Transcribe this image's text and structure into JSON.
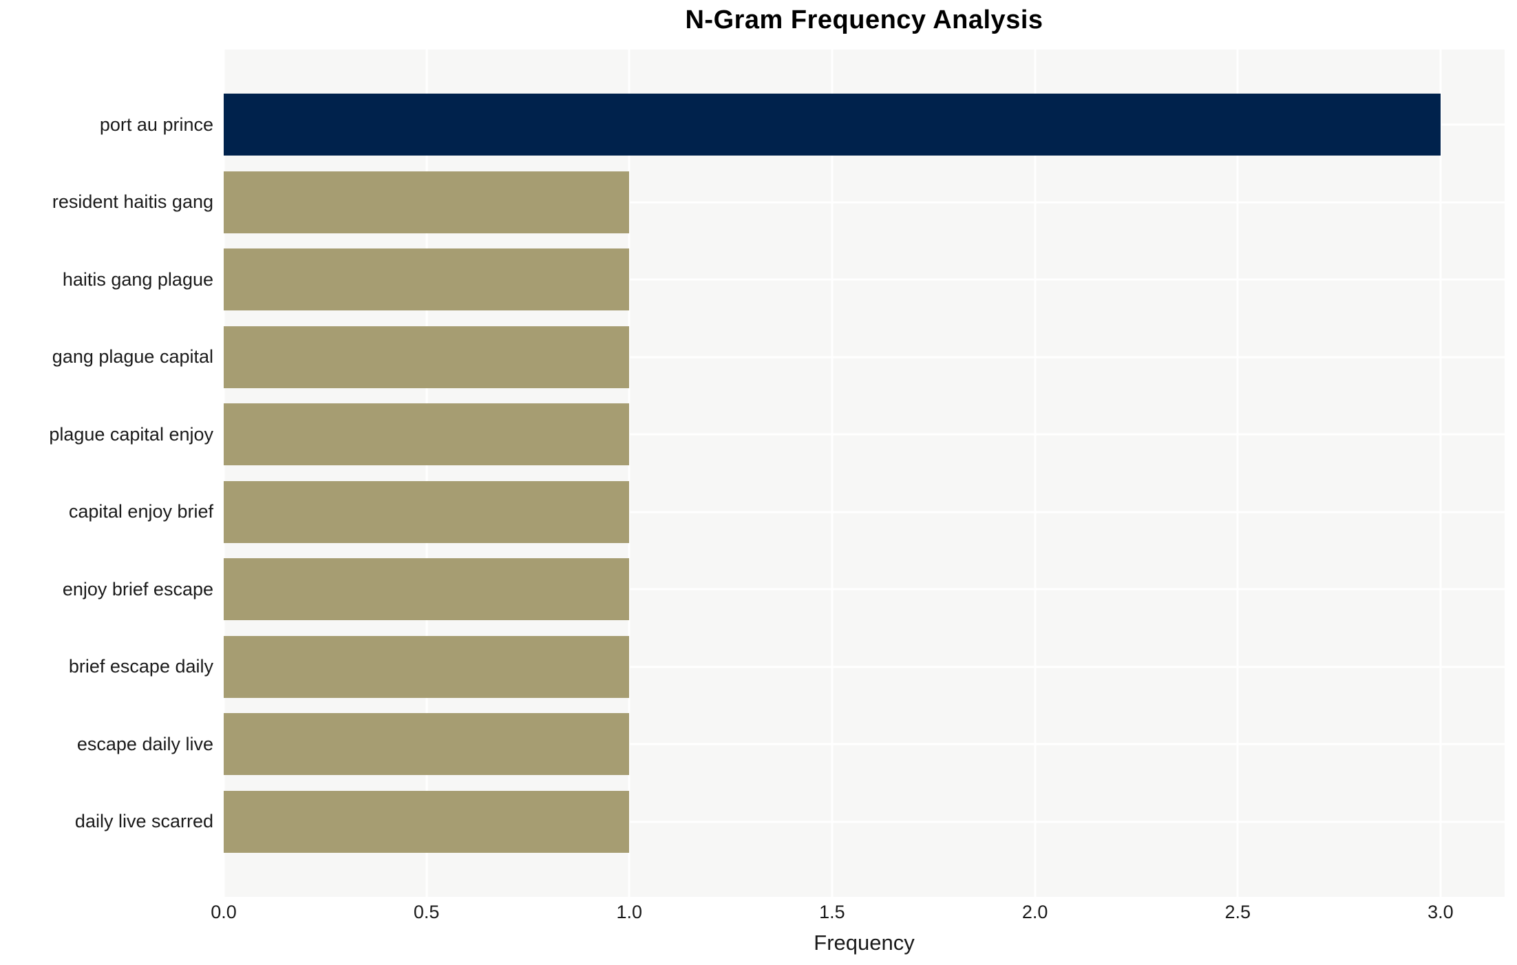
{
  "title": "N-Gram Frequency Analysis",
  "chart_data": {
    "type": "bar",
    "orientation": "horizontal",
    "title": "N-Gram Frequency Analysis",
    "xlabel": "Frequency",
    "ylabel": "",
    "categories": [
      "port au prince",
      "resident haitis gang",
      "haitis gang plague",
      "gang plague capital",
      "plague capital enjoy",
      "capital enjoy brief",
      "enjoy brief escape",
      "brief escape daily",
      "escape daily live",
      "daily live scarred"
    ],
    "values": [
      3,
      1,
      1,
      1,
      1,
      1,
      1,
      1,
      1,
      1
    ],
    "bar_colors": [
      "#00224c",
      "#a69d72",
      "#a69d72",
      "#a69d72",
      "#a69d72",
      "#a69d72",
      "#a69d72",
      "#a69d72",
      "#a69d72",
      "#a69d72"
    ],
    "x_ticks": [
      0.0,
      0.5,
      1.0,
      1.5,
      2.0,
      2.5,
      3.0
    ],
    "x_tick_decimals": 1,
    "xlim": [
      0,
      3.158
    ],
    "grid": true,
    "grid_color": "#ffffff",
    "plot_background": "#f7f7f6",
    "legend_position": "none"
  }
}
